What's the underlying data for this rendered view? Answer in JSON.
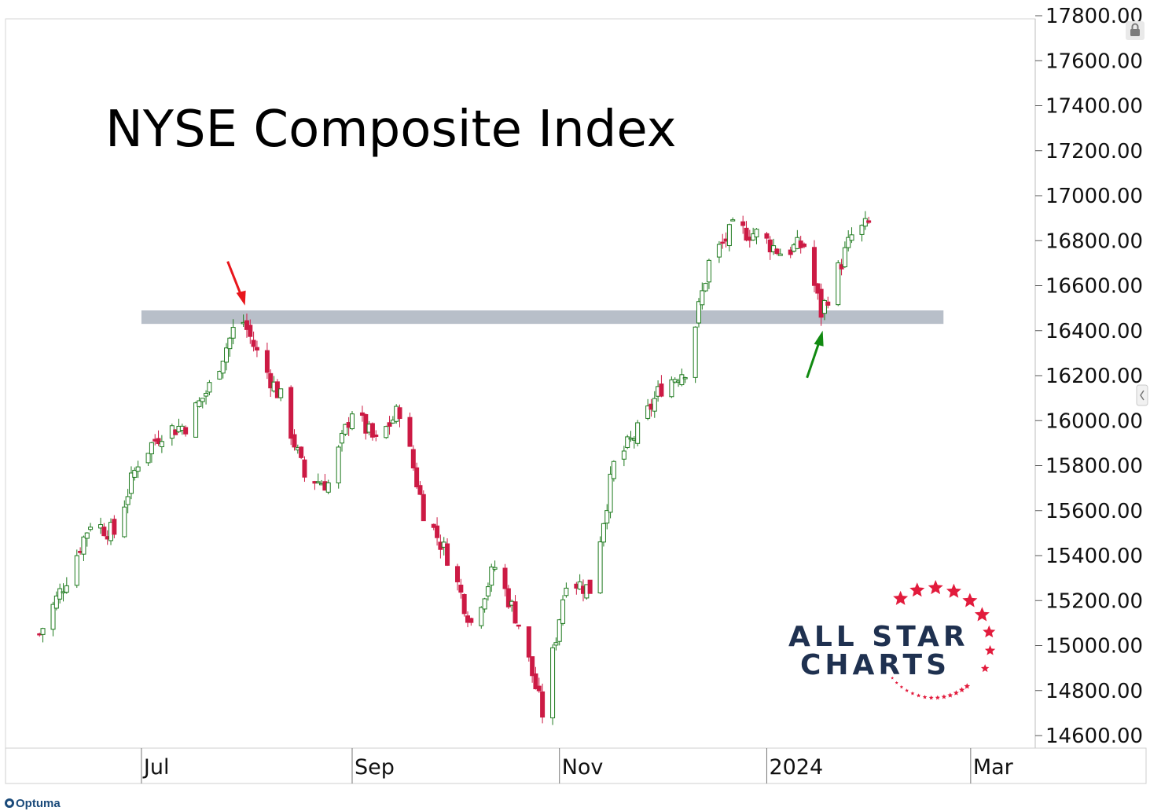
{
  "chart_data": {
    "type": "candlestick",
    "title": "NYSE Composite Index",
    "y_ticks": [
      "17800.00",
      "17600.00",
      "17400.00",
      "17200.00",
      "17000.00",
      "16800.00",
      "16600.00",
      "16400.00",
      "16200.00",
      "16000.00",
      "15800.00",
      "15600.00",
      "15400.00",
      "15200.00",
      "15000.00",
      "14800.00",
      "14600.00"
    ],
    "x_ticks": [
      {
        "label": "Jul",
        "date": "2023-07-01"
      },
      {
        "label": "Sep",
        "date": "2023-09-01"
      },
      {
        "label": "Nov",
        "date": "2023-11-01"
      },
      {
        "label": "2024",
        "date": "2024-01-01"
      },
      {
        "label": "Mar",
        "date": "2024-03-01"
      }
    ],
    "ylim": [
      14550,
      17800
    ],
    "xlim": [
      "2023-05-22",
      "2024-03-20"
    ],
    "resistance_zone": {
      "low": 16430,
      "high": 16490,
      "from": "2023-07-01",
      "to": "2024-02-22",
      "color": "#b8bfc9"
    },
    "annotations": [
      {
        "type": "arrow",
        "color": "#e8161c",
        "at_date": "2023-07-31",
        "at_value": 16470,
        "direction": "down"
      },
      {
        "type": "arrow",
        "color": "#118a11",
        "at_date": "2024-01-17",
        "at_value": 16470,
        "direction": "up"
      }
    ],
    "up_color": "#1e7a1e",
    "down_color": "#cc1a44",
    "series": [
      {
        "date": "2023-06-01",
        "close": 15050
      },
      {
        "date": "2023-06-09",
        "close": 15300
      },
      {
        "date": "2023-06-16",
        "close": 15550
      },
      {
        "date": "2023-06-23",
        "close": 15500
      },
      {
        "date": "2023-06-30",
        "close": 15820
      },
      {
        "date": "2023-07-07",
        "close": 15950
      },
      {
        "date": "2023-07-14",
        "close": 15980
      },
      {
        "date": "2023-07-21",
        "close": 16150
      },
      {
        "date": "2023-07-28",
        "close": 16400
      },
      {
        "date": "2023-07-31",
        "close": 16440
      },
      {
        "date": "2023-08-04",
        "close": 16300
      },
      {
        "date": "2023-08-11",
        "close": 16100
      },
      {
        "date": "2023-08-18",
        "close": 15750
      },
      {
        "date": "2023-08-25",
        "close": 15720
      },
      {
        "date": "2023-09-01",
        "close": 16050
      },
      {
        "date": "2023-09-08",
        "close": 15900
      },
      {
        "date": "2023-09-15",
        "close": 16050
      },
      {
        "date": "2023-09-22",
        "close": 15600
      },
      {
        "date": "2023-09-29",
        "close": 15400
      },
      {
        "date": "2023-10-06",
        "close": 15100
      },
      {
        "date": "2023-10-13",
        "close": 15350
      },
      {
        "date": "2023-10-20",
        "close": 15100
      },
      {
        "date": "2023-10-27",
        "close": 14700
      },
      {
        "date": "2023-11-03",
        "close": 15300
      },
      {
        "date": "2023-11-10",
        "close": 15250
      },
      {
        "date": "2023-11-17",
        "close": 15800
      },
      {
        "date": "2023-11-24",
        "close": 15950
      },
      {
        "date": "2023-12-01",
        "close": 16150
      },
      {
        "date": "2023-12-08",
        "close": 16230
      },
      {
        "date": "2023-12-15",
        "close": 16700
      },
      {
        "date": "2023-12-22",
        "close": 16850
      },
      {
        "date": "2023-12-29",
        "close": 16830
      },
      {
        "date": "2024-01-05",
        "close": 16750
      },
      {
        "date": "2024-01-12",
        "close": 16780
      },
      {
        "date": "2024-01-17",
        "close": 16480
      },
      {
        "date": "2024-01-26",
        "close": 16820
      },
      {
        "date": "2024-01-31",
        "close": 16870
      }
    ]
  },
  "logo": {
    "line1": "ALL STAR",
    "line2": "CHARTS",
    "star_color": "#e21b3c",
    "text_color": "#1f3150"
  },
  "footer": {
    "brand": "Optuma"
  }
}
